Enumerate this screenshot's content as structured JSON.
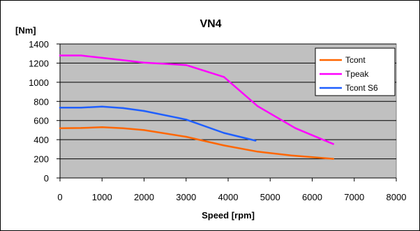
{
  "chart_data": {
    "type": "line",
    "title": "VN4",
    "xlabel": "Speed [rpm]",
    "ylabel": "[Nm]",
    "xlim": [
      0,
      8000
    ],
    "ylim": [
      0,
      1400
    ],
    "xticks": [
      0,
      1000,
      2000,
      3000,
      4000,
      5000,
      6000,
      7000,
      8000
    ],
    "yticks": [
      0,
      200,
      400,
      600,
      800,
      1000,
      1200,
      1400
    ],
    "grid": "horizontal",
    "legend_position": "top-right",
    "series": [
      {
        "name": "Tcont",
        "color": "#ff6600",
        "x": [
          0,
          500,
          1000,
          1500,
          2000,
          3000,
          3900,
          4700,
          5500,
          6500
        ],
        "y": [
          520,
          522,
          530,
          520,
          500,
          430,
          340,
          275,
          235,
          200
        ]
      },
      {
        "name": "Tpeak",
        "color": "#ff00ff",
        "x": [
          0,
          500,
          1000,
          1500,
          2000,
          3000,
          3900,
          4700,
          5600,
          6500
        ],
        "y": [
          1280,
          1280,
          1255,
          1230,
          1205,
          1180,
          1055,
          750,
          520,
          355
        ]
      },
      {
        "name": "Tcont S6",
        "color": "#1f5fff",
        "x": [
          0,
          500,
          1000,
          1500,
          2000,
          3000,
          3900,
          4650
        ],
        "y": [
          735,
          735,
          745,
          730,
          700,
          610,
          470,
          390
        ]
      }
    ]
  }
}
